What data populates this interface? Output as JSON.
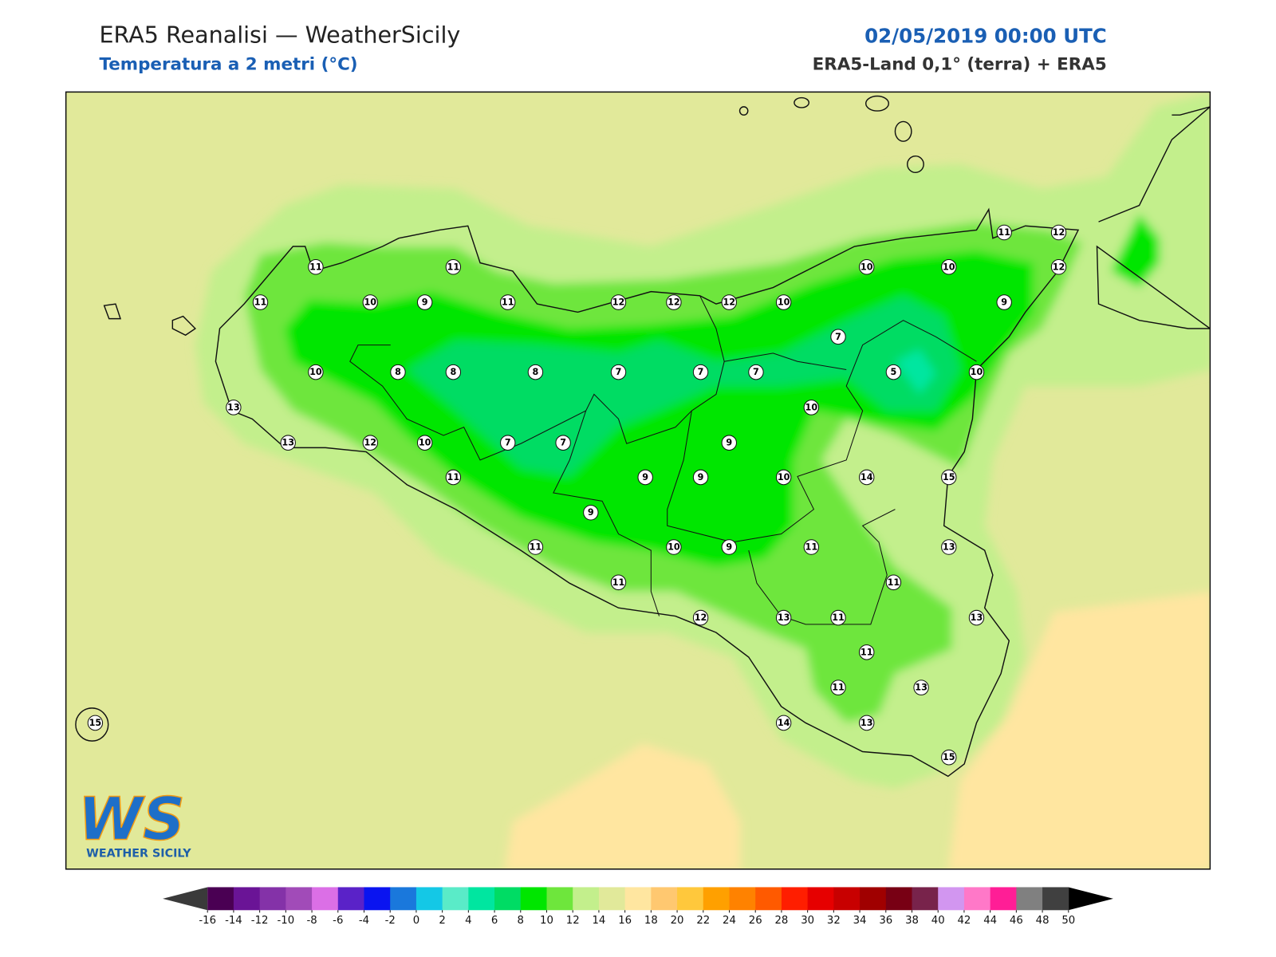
{
  "header": {
    "title": "ERA5 Reanalisi — WeatherSicily",
    "subtitle": "Temperatura a 2 metri (°C)",
    "datetime": "02/05/2019 00:00 UTC",
    "source": "ERA5-Land 0,1° (terra) + ERA5"
  },
  "stations": [
    11,
    11,
    11,
    10,
    9,
    11,
    12,
    12,
    12,
    10,
    10,
    10,
    11,
    12,
    12,
    9,
    7,
    10,
    8,
    8,
    8,
    7,
    7,
    7,
    5,
    10,
    13,
    10,
    13,
    12,
    10,
    7,
    7,
    9,
    11,
    9,
    9,
    10,
    14,
    15,
    9,
    11,
    10,
    9,
    11,
    13,
    11,
    11,
    12,
    13,
    11,
    13,
    11,
    11,
    13,
    15,
    14,
    13,
    15
  ],
  "colorbar": {
    "ticks": [
      -16,
      -14,
      -12,
      -10,
      -8,
      -6,
      -4,
      -2,
      0,
      2,
      4,
      6,
      8,
      10,
      12,
      14,
      16,
      18,
      20,
      22,
      24,
      26,
      28,
      30,
      32,
      34,
      36,
      38,
      40,
      42,
      44,
      46,
      48,
      50
    ],
    "colors": [
      "#4a0053",
      "#6a1496",
      "#8432a8",
      "#a14bb8",
      "#db6fe6",
      "#5a22c8",
      "#0a14f0",
      "#1a78dc",
      "#14c8e6",
      "#5aebc8",
      "#00e6a0",
      "#00dc64",
      "#00e600",
      "#6ee63c",
      "#c3ef8c",
      "#e1e99a",
      "#ffe6a0",
      "#ffc870",
      "#ffc83c",
      "#ffa000",
      "#ff8200",
      "#ff5a00",
      "#ff1e00",
      "#e60000",
      "#c80000",
      "#a00000",
      "#780014",
      "#78234b",
      "#d296f0",
      "#ff78c8",
      "#ff1e96",
      "#808080",
      "#404040"
    ],
    "under": "#3a3a3a",
    "over": "#000000"
  },
  "logo": {
    "mark": "WS",
    "text": "WEATHER SICILY"
  }
}
